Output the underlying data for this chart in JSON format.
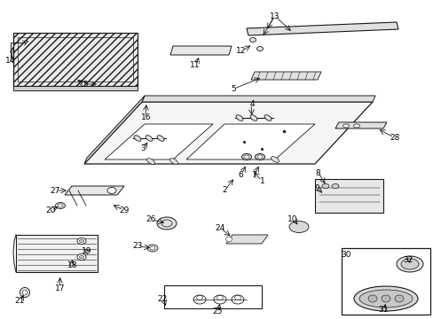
{
  "bg_color": "#ffffff",
  "lc": "#1a1a1a",
  "figsize": [
    4.89,
    3.6
  ],
  "dpi": 100
}
